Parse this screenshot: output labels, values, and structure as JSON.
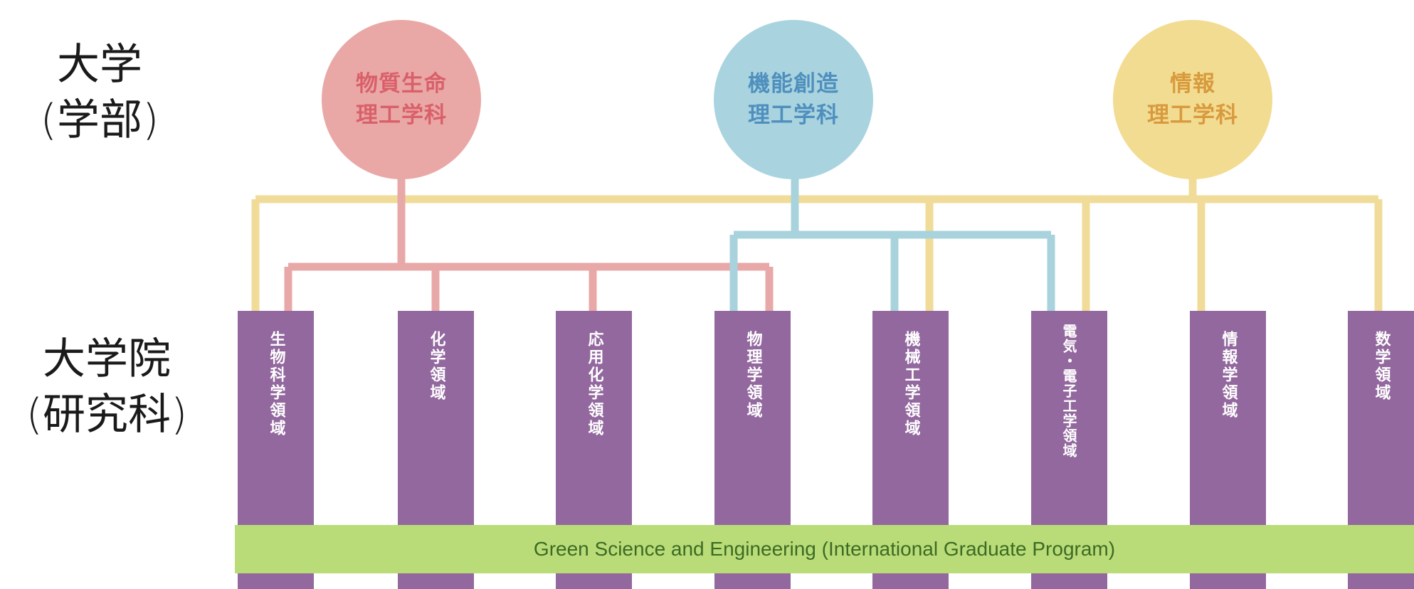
{
  "side_labels": {
    "university": {
      "line1": "大学",
      "line2": "(学部)"
    },
    "graduate": {
      "line1": "大学院",
      "line2": "(研究科)"
    }
  },
  "departments": [
    {
      "line1": "物質生命",
      "line2": "理工学科",
      "fill": "#e9a8a6",
      "text_color": "#d9606a",
      "line_color": "#e8a8a8"
    },
    {
      "line1": "機能創造",
      "line2": "理工学科",
      "fill": "#a9d4df",
      "text_color": "#4f8fbe",
      "line_color": "#a8d3dc"
    },
    {
      "line1": "情報",
      "line2": "理工学科",
      "fill": "#f2dc92",
      "text_color": "#d89a3d",
      "line_color": "#f0dc98"
    }
  ],
  "fields": [
    {
      "label": "生物科学領域"
    },
    {
      "label": "化学領域"
    },
    {
      "label": "応用化学領域"
    },
    {
      "label": "物理学領域"
    },
    {
      "label": "機械工学領域"
    },
    {
      "label": "電気・電子工学領域"
    },
    {
      "label": "情報学領域"
    },
    {
      "label": "数学領域"
    }
  ],
  "program": {
    "label": "Green Science and Engineering (International Graduate Program)"
  },
  "colors": {
    "column": "#93689f",
    "program_bar": "#b9dc78",
    "program_text": "#3d6b24"
  }
}
